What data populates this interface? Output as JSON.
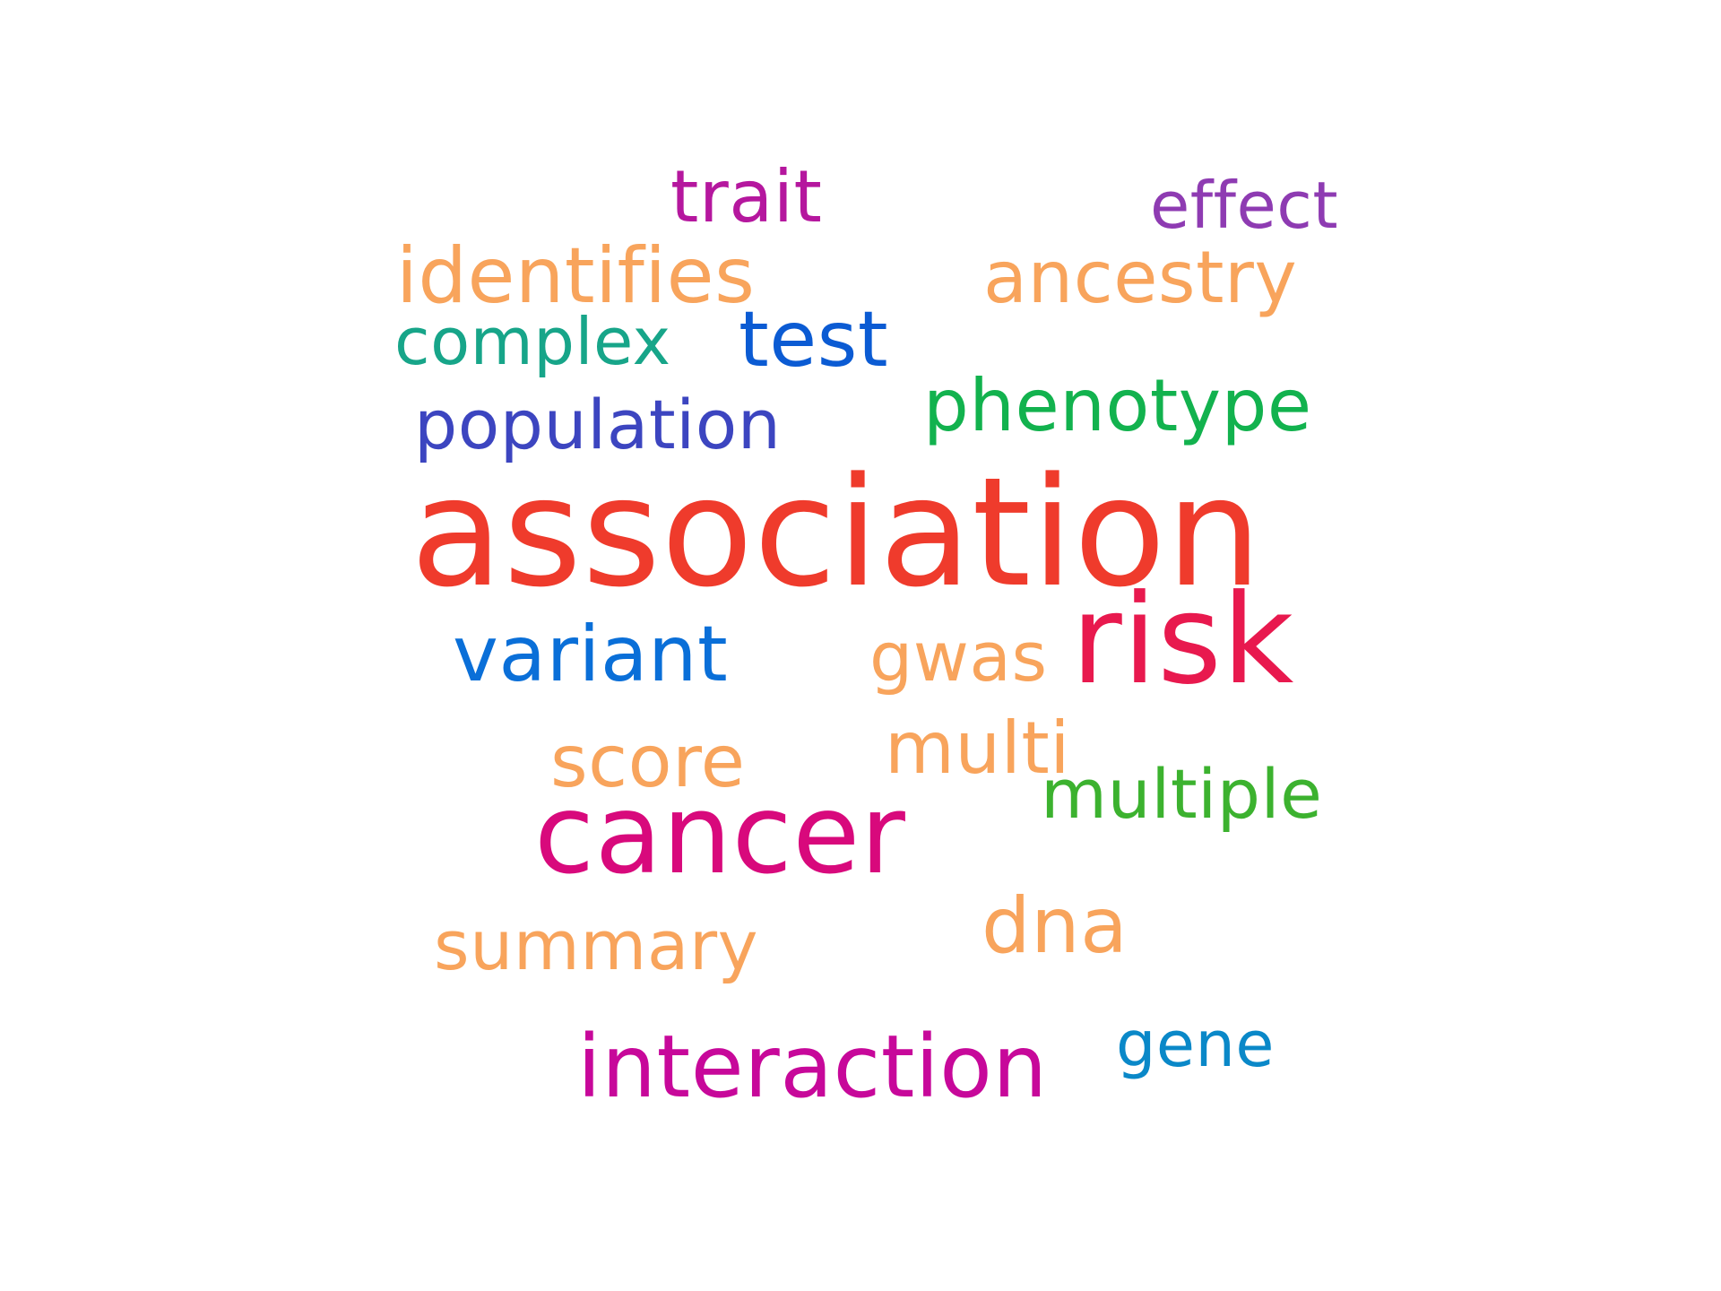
{
  "words": [
    {
      "text": "trait",
      "color": "#b5179e"
    },
    {
      "text": "effect",
      "color": "#8e3bb2"
    },
    {
      "text": "identifies",
      "color": "#f8a45c"
    },
    {
      "text": "ancestry",
      "color": "#f8a45c"
    },
    {
      "text": "complex",
      "color": "#17a589"
    },
    {
      "text": "test",
      "color": "#0b5bd3"
    },
    {
      "text": "phenotype",
      "color": "#12b24e"
    },
    {
      "text": "population",
      "color": "#3c45c0"
    },
    {
      "text": "association",
      "color": "#ef3b2c"
    },
    {
      "text": "variant",
      "color": "#0a6fd8"
    },
    {
      "text": "gwas",
      "color": "#f8a45c"
    },
    {
      "text": "risk",
      "color": "#e8194e"
    },
    {
      "text": "score",
      "color": "#f8a45c"
    },
    {
      "text": "multi",
      "color": "#f8a45c"
    },
    {
      "text": "multiple",
      "color": "#3cb22f"
    },
    {
      "text": "cancer",
      "color": "#d8097c"
    },
    {
      "text": "summary",
      "color": "#f8a45c"
    },
    {
      "text": "dna",
      "color": "#f8a45c"
    },
    {
      "text": "interaction",
      "color": "#c7089a"
    },
    {
      "text": "gene",
      "color": "#0a88c8"
    }
  ]
}
